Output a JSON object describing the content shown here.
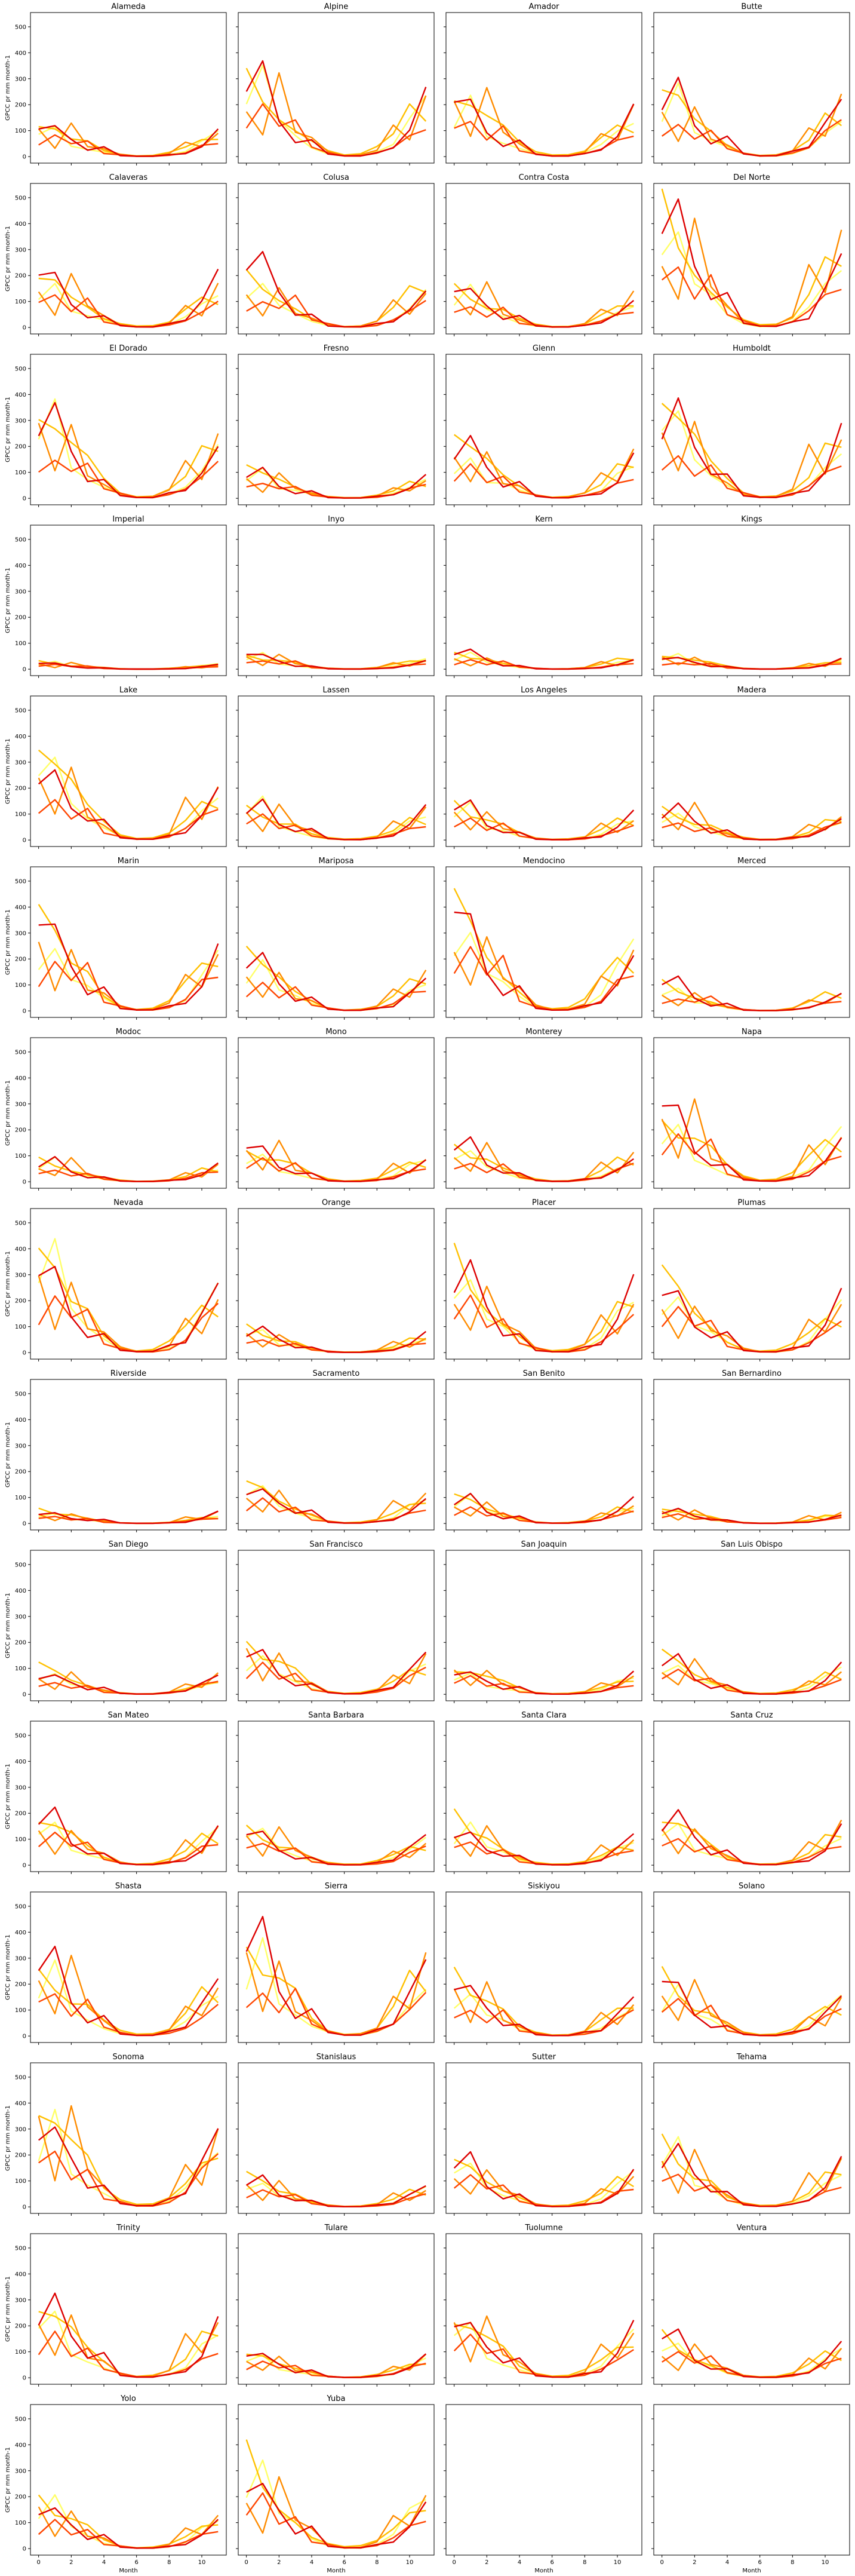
{
  "figure": {
    "ylabel": "GPCC pr mm month-1",
    "xlabel": "Month",
    "panels": [
      "Alameda",
      "Alpine",
      "Amador",
      "Butte",
      "Calaveras",
      "Colusa",
      "Contra Costa",
      "Del Norte",
      "El Dorado",
      "Fresno",
      "Glenn",
      "Humboldt",
      "Imperial",
      "Inyo",
      "Kern",
      "Kings",
      "Lake",
      "Lassen",
      "Los Angeles",
      "Madera",
      "Marin",
      "Mariposa",
      "Mendocino",
      "Merced",
      "Modoc",
      "Mono",
      "Monterey",
      "Napa",
      "Nevada",
      "Orange",
      "Placer",
      "Plumas",
      "Riverside",
      "Sacramento",
      "San Benito",
      "San Bernardino",
      "San Diego",
      "San Francisco",
      "San Joaquin",
      "San Luis Obispo",
      "San Mateo",
      "Santa Barbara",
      "Santa Clara",
      "Santa Cruz",
      "Shasta",
      "Sierra",
      "Siskiyou",
      "Solano",
      "Sonoma",
      "Stanislaus",
      "Sutter",
      "Tehama",
      "Trinity",
      "Tulare",
      "Tuolumne",
      "Ventura",
      "Yolo",
      "Yuba"
    ]
  },
  "chart_data": {
    "type": "line",
    "grid": false,
    "xlabel": "Month",
    "ylabel": "GPCC pr mm month-1",
    "xlim": [
      -0.5,
      11.5
    ],
    "ylim": [
      -25,
      555
    ],
    "x_ticks": [
      0,
      2,
      4,
      6,
      8,
      10
    ],
    "y_ticks": [
      0,
      100,
      200,
      300,
      400,
      500
    ],
    "x": [
      0,
      1,
      2,
      3,
      4,
      5,
      6,
      7,
      8,
      9,
      10,
      11
    ],
    "series_colors": [
      "#ffff66",
      "#ffc000",
      "#ff8c00",
      "#ff4500",
      "#dd0000"
    ],
    "peak_scale": {
      "Alameda": 140,
      "Alpine": 330,
      "Amador": 250,
      "Butte": 300,
      "Calaveras": 240,
      "Colusa": 240,
      "Contra Costa": 170,
      "Del Norte": 430,
      "El Dorado": 340,
      "Fresno": 110,
      "Glenn": 230,
      "Humboldt": 380,
      "Imperial": 28,
      "Inyo": 60,
      "Kern": 65,
      "Kings": 55,
      "Lake": 360,
      "Lassen": 150,
      "Los Angeles": 130,
      "Madera": 140,
      "Marin": 340,
      "Mariposa": 190,
      "Mendocino": 380,
      "Merced": 110,
      "Modoc": 95,
      "Mono": 150,
      "Monterey": 150,
      "Napa": 300,
      "Nevada": 390,
      "Orange": 100,
      "Placer": 340,
      "Plumas": 280,
      "Riverside": 55,
      "Sacramento": 170,
      "San Benito": 110,
      "San Bernardino": 55,
      "San Diego": 100,
      "San Francisco": 220,
      "San Joaquin": 110,
      "San Luis Obispo": 140,
      "San Mateo": 200,
      "Santa Barbara": 160,
      "Santa Clara": 170,
      "Santa Cruz": 210,
      "Shasta": 300,
      "Sierra": 400,
      "Siskiyou": 220,
      "Solano": 210,
      "Sonoma": 410,
      "Stanislaus": 110,
      "Sutter": 190,
      "Tehama": 240,
      "Trinity": 310,
      "Tulare": 110,
      "Tuolumne": 250,
      "Ventura": 150,
      "Yolo": 200,
      "Yuba": 320
    },
    "base_profiles": [
      [
        0.55,
        0.9,
        0.35,
        0.25,
        0.12,
        0.04,
        0.01,
        0.01,
        0.05,
        0.15,
        0.4,
        0.6
      ],
      [
        1.05,
        0.75,
        0.55,
        0.4,
        0.18,
        0.06,
        0.02,
        0.03,
        0.1,
        0.28,
        0.55,
        0.45
      ],
      [
        0.7,
        0.25,
        0.85,
        0.3,
        0.2,
        0.05,
        0.01,
        0.02,
        0.08,
        0.45,
        0.25,
        0.7
      ],
      [
        0.35,
        0.55,
        0.3,
        0.45,
        0.1,
        0.05,
        0.01,
        0.01,
        0.04,
        0.12,
        0.3,
        0.4
      ],
      [
        0.8,
        1.0,
        0.45,
        0.2,
        0.25,
        0.03,
        0.01,
        0.01,
        0.06,
        0.1,
        0.35,
        0.75
      ]
    ]
  }
}
